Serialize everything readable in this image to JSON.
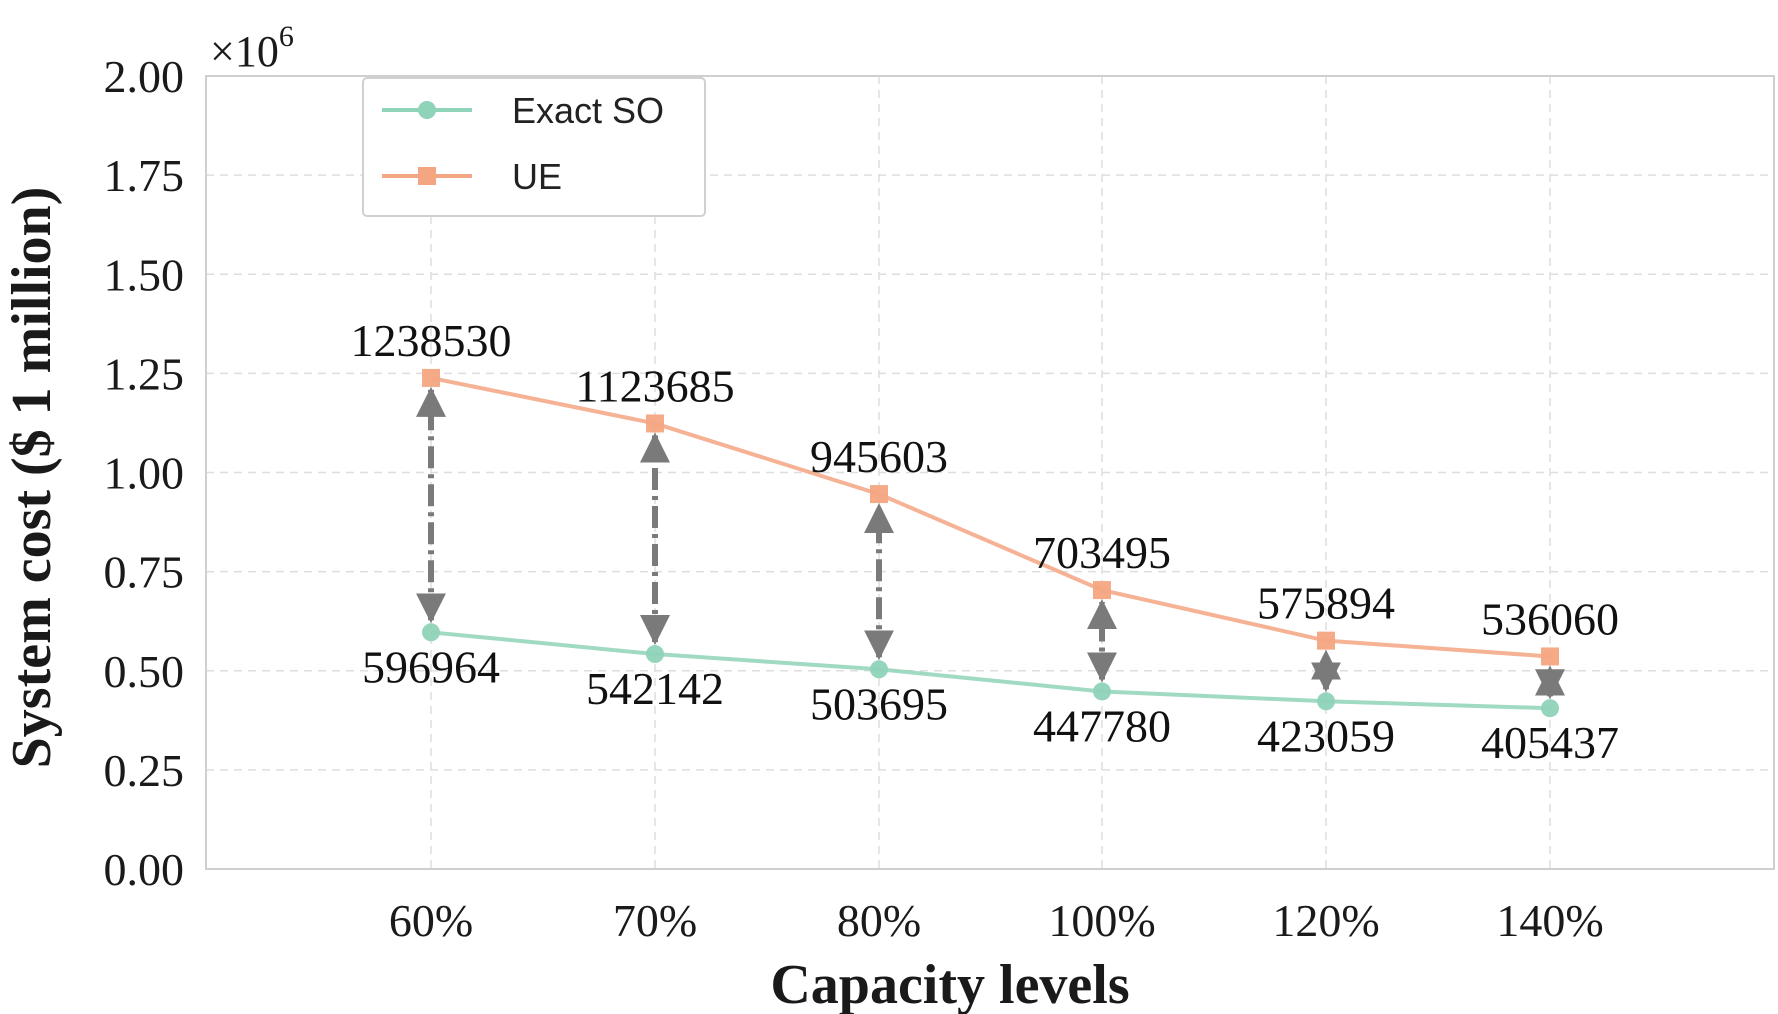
{
  "chart_data": {
    "type": "line",
    "categories": [
      "60%",
      "70%",
      "80%",
      "100%",
      "120%",
      "140%"
    ],
    "series": [
      {
        "name": "Exact SO",
        "color": "#8fd3b8",
        "marker": "circle",
        "values": [
          596964,
          542142,
          503695,
          447780,
          423059,
          405437
        ],
        "labels": [
          "596964",
          "542142",
          "503695",
          "447780",
          "423059",
          "405437"
        ]
      },
      {
        "name": "UE",
        "color": "#f4a582",
        "marker": "square",
        "values": [
          1238530,
          1123685,
          945603,
          703495,
          575894,
          536060
        ],
        "labels": [
          "1238530",
          "1123685",
          "945603",
          "703495",
          "575894",
          "536060"
        ]
      }
    ],
    "xlabel": "Capacity levels",
    "ylabel": "System cost ($ 1 million)",
    "ylim": [
      0,
      2000000
    ],
    "yticks": [
      0,
      250000,
      500000,
      750000,
      1000000,
      1250000,
      1500000,
      1750000,
      2000000
    ],
    "ytick_labels": [
      "0.00",
      "0.25",
      "0.50",
      "0.75",
      "1.00",
      "1.25",
      "1.50",
      "1.75",
      "2.00"
    ],
    "y_multiplier": "×10",
    "y_multiplier_exp": "6",
    "grid": true,
    "legend_position": "top-left",
    "arrow_color": "#7a7a7a"
  }
}
